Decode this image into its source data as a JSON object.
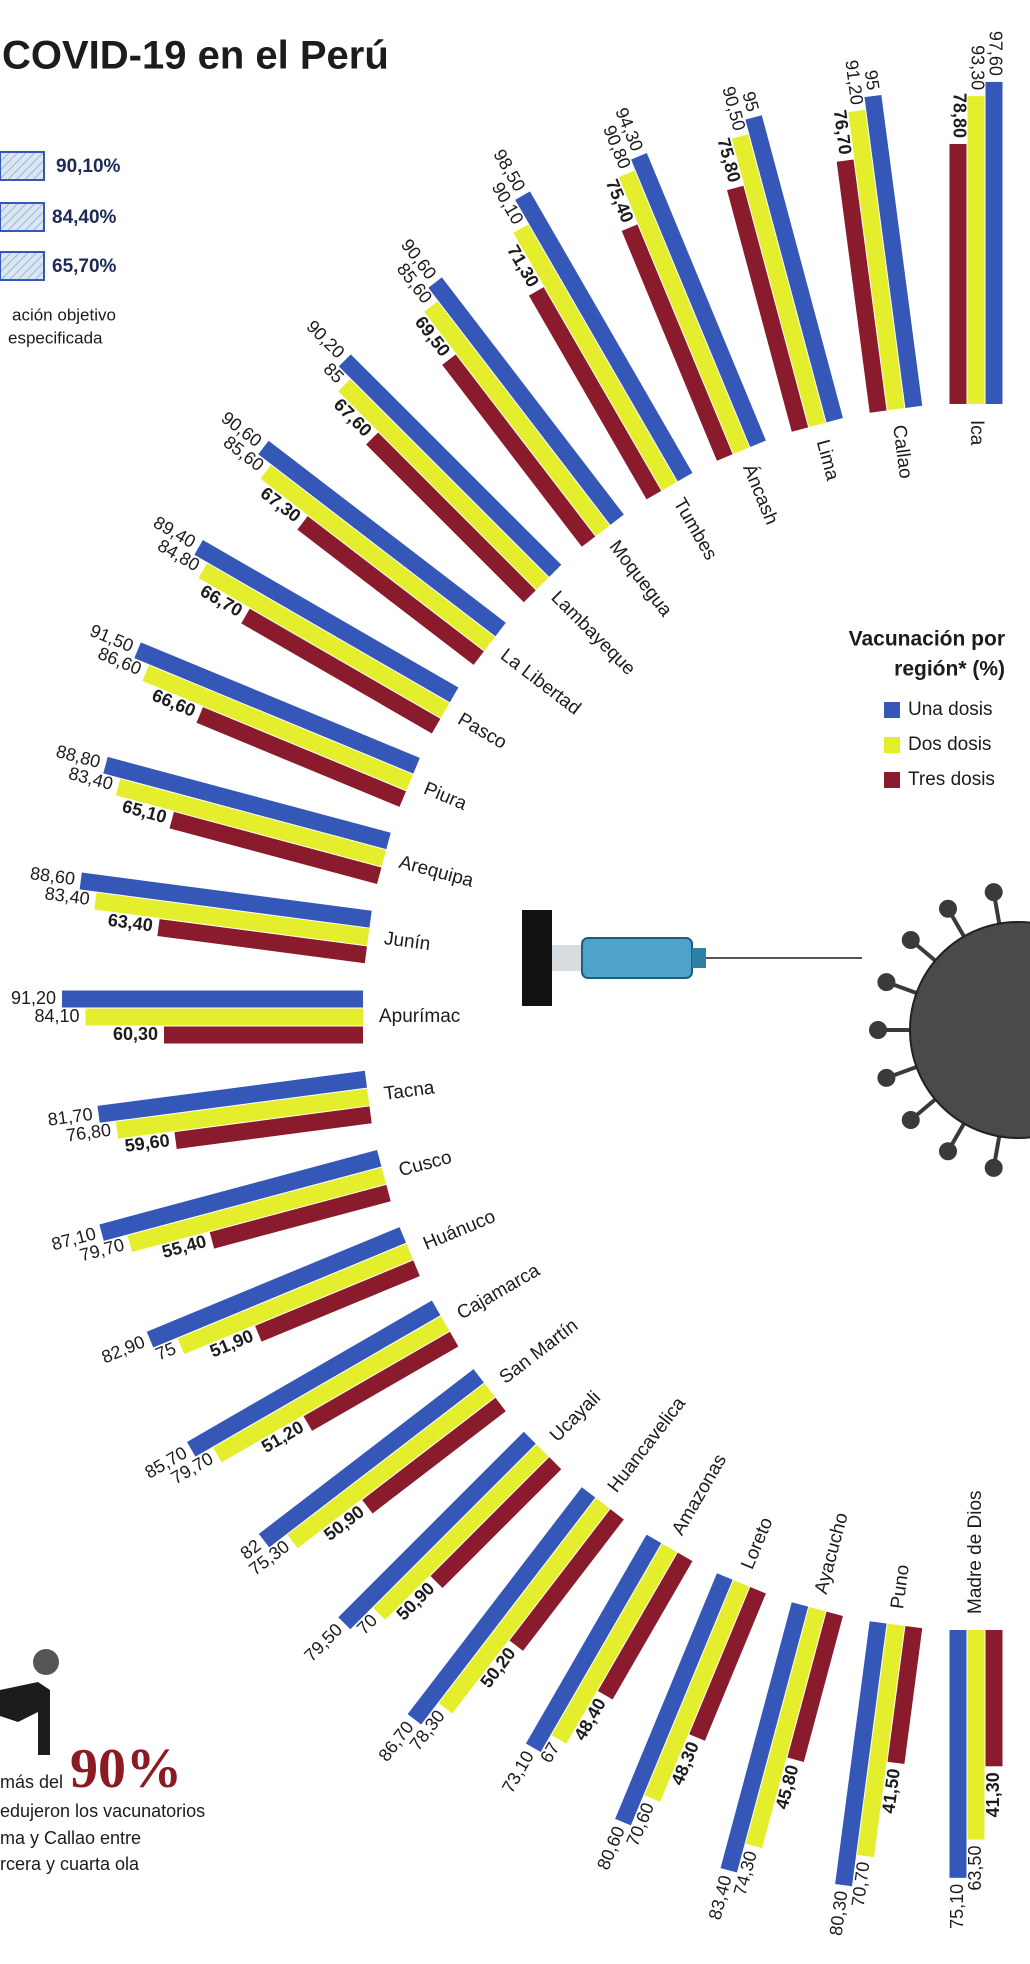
{
  "header": {
    "title": "COVID-19 en el Perú"
  },
  "national": {
    "figures": [
      "90,10%",
      "84,40%",
      "65,70%"
    ],
    "note": [
      "ación objetivo",
      "especificada"
    ]
  },
  "chart_data": {
    "type": "radial_bar",
    "legend_title": [
      "Vacunación por",
      "región* (%)"
    ],
    "categories": [
      "Ica",
      "Callao",
      "Lima",
      "Áncash",
      "Tumbes",
      "Moquegua",
      "Lambayeque",
      "La Libertad",
      "Pasco",
      "Piura",
      "Arequipa",
      "Junín",
      "Apurímac",
      "Tacna",
      "Cusco",
      "Huánuco",
      "Cajamarca",
      "San Martín",
      "Ucayali",
      "Huancavelica",
      "Amazonas",
      "Loreto",
      "Ayacucho",
      "Puno",
      "Madre de Dios"
    ],
    "series": [
      {
        "name": "Una dosis",
        "color": "#3557b8",
        "values": [
          97.6,
          95,
          95,
          94.3,
          98.5,
          90.6,
          90.2,
          90.6,
          89.4,
          91.5,
          88.8,
          88.6,
          91.2,
          81.7,
          87.1,
          82.9,
          85.7,
          82,
          79.5,
          86.7,
          73.1,
          80.6,
          83.4,
          80.3,
          75.1
        ],
        "value_labels": [
          "97,60",
          "95",
          "95",
          "94,30",
          "98,50",
          "90,60",
          "90,20",
          "90,60",
          "89,40",
          "91,50",
          "88,80",
          "88,60",
          "91,20",
          "81,70",
          "87,10",
          "82,90",
          "85,70",
          "82",
          "79,50",
          "86,70",
          "73,10",
          "80,60",
          "83,40",
          "80,30",
          "75,10"
        ]
      },
      {
        "name": "Dos dosis",
        "color": "#e4ee2c",
        "values": [
          93.3,
          91.2,
          90.5,
          90.8,
          90.1,
          85.6,
          85,
          85.6,
          84.8,
          86.6,
          83.4,
          83.4,
          84.1,
          76.8,
          79.7,
          75,
          79.7,
          75.3,
          70,
          78.3,
          67,
          70.6,
          74.3,
          70.7,
          63.5
        ],
        "value_labels": [
          "93,30",
          "91,20",
          "90,50",
          "90,80",
          "90,10",
          "85,60",
          "85",
          "85,60",
          "84,80",
          "86,60",
          "83,40",
          "83,40",
          "84,10",
          "76,80",
          "79,70",
          "75",
          "79,70",
          "75,30",
          "70",
          "78,30",
          "67",
          "70,60",
          "74,30",
          "70,70",
          "63,50"
        ]
      },
      {
        "name": "Tres dosis",
        "color": "#8a1b2c",
        "values": [
          78.8,
          76.7,
          75.8,
          75.4,
          71.3,
          69.5,
          67.6,
          67.3,
          66.7,
          66.6,
          65.1,
          63.4,
          60.3,
          59.6,
          55.4,
          51.9,
          51.2,
          50.9,
          50.9,
          50.2,
          48.4,
          48.3,
          45.8,
          41.5,
          41.3
        ],
        "value_labels": [
          "78,80",
          "76,70",
          "75,80",
          "75,40",
          "71,30",
          "69,50",
          "67,60",
          "67,30",
          "66,70",
          "66,60",
          "65,10",
          "63,40",
          "60,30",
          "59,60",
          "55,40",
          "51,90",
          "51,20",
          "50,90",
          "50,90",
          "50,20",
          "48,40",
          "48,30",
          "45,80",
          "41,50",
          "41,30"
        ]
      }
    ]
  },
  "callout": {
    "lead": "más del",
    "figure": "90%",
    "lines": [
      "edujeron los vacunatorios",
      "ma y Callao entre",
      "rcera y cuarta ola"
    ]
  }
}
